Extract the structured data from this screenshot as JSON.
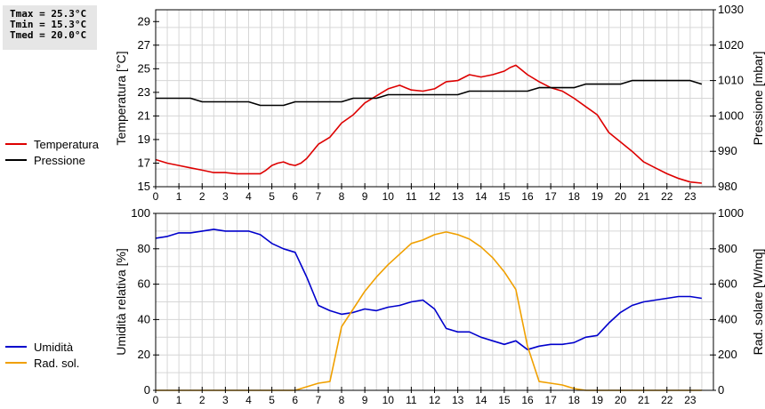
{
  "stats": {
    "tmax": "Tmax = 25.3°C",
    "tmin": "Tmin = 15.3°C",
    "tmed": "Tmed = 20.0°C"
  },
  "chart_data": [
    {
      "type": "line",
      "x_tick_labels": [
        "0",
        "1",
        "2",
        "3",
        "4",
        "5",
        "6",
        "7",
        "8",
        "9",
        "10",
        "11",
        "12",
        "13",
        "14",
        "15",
        "16",
        "17",
        "18",
        "19",
        "20",
        "21",
        "22",
        "23"
      ],
      "xlim": [
        0,
        24
      ],
      "ylabel": "Temperatura [°C]",
      "ylim": [
        15,
        30
      ],
      "y_tick_labels": [
        "15",
        "17",
        "19",
        "21",
        "23",
        "25",
        "27",
        "29"
      ],
      "y2label": "Pressione [mbar]",
      "y2lim": [
        980,
        1030
      ],
      "y2_tick_labels": [
        "980",
        "990",
        "1000",
        "1010",
        "1020",
        "1030"
      ],
      "grid": true,
      "legend_position": "left",
      "series": [
        {
          "name": "Temperatura",
          "axis": "left",
          "color": "#dd0000",
          "x": [
            0,
            0.5,
            1,
            1.5,
            2,
            2.5,
            3,
            3.5,
            4,
            4.5,
            4.75,
            5,
            5.25,
            5.5,
            5.75,
            6,
            6.25,
            6.5,
            7,
            7.5,
            8,
            8.5,
            9,
            9.5,
            10,
            10.5,
            10.75,
            11,
            11.5,
            12,
            12.5,
            13,
            13.5,
            14,
            14.5,
            15,
            15.25,
            15.5,
            16,
            16.5,
            17,
            17.5,
            18,
            18.5,
            19,
            19.5,
            20,
            20.5,
            21,
            21.5,
            22,
            22.5,
            23,
            23.5
          ],
          "y": [
            17.3,
            17.0,
            16.8,
            16.6,
            16.4,
            16.2,
            16.2,
            16.1,
            16.1,
            16.1,
            16.4,
            16.8,
            17.0,
            17.1,
            16.9,
            16.8,
            17.0,
            17.4,
            18.6,
            19.2,
            20.4,
            21.1,
            22.1,
            22.7,
            23.3,
            23.6,
            23.4,
            23.2,
            23.1,
            23.3,
            23.9,
            24.0,
            24.5,
            24.3,
            24.5,
            24.8,
            25.1,
            25.3,
            24.5,
            23.9,
            23.4,
            23.1,
            22.5,
            21.8,
            21.1,
            19.6,
            18.8,
            18.0,
            17.1,
            16.6,
            16.1,
            15.7,
            15.4,
            15.3
          ]
        },
        {
          "name": "Pressione",
          "axis": "right",
          "color": "#000000",
          "x": [
            0,
            1.5,
            2,
            4,
            4.5,
            5.5,
            6,
            8,
            8.5,
            9.5,
            10,
            13,
            13.5,
            16,
            16.5,
            18,
            18.5,
            20,
            20.5,
            23,
            23.5
          ],
          "y": [
            1005,
            1005,
            1004,
            1004,
            1003,
            1003,
            1004,
            1004,
            1005,
            1005,
            1006,
            1006,
            1007,
            1007,
            1008,
            1008,
            1009,
            1009,
            1010,
            1010,
            1009
          ]
        }
      ]
    },
    {
      "type": "line",
      "x_tick_labels": [
        "0",
        "1",
        "2",
        "3",
        "4",
        "5",
        "6",
        "7",
        "8",
        "9",
        "10",
        "11",
        "12",
        "13",
        "14",
        "15",
        "16",
        "17",
        "18",
        "19",
        "20",
        "21",
        "22",
        "23"
      ],
      "xlim": [
        0,
        24
      ],
      "ylabel": "Umidità relativa [%]",
      "ylim": [
        0,
        100
      ],
      "y_tick_labels": [
        "0",
        "20",
        "40",
        "60",
        "80",
        "100"
      ],
      "y2label": "Rad. solare [W/mq]",
      "y2lim": [
        0,
        1000
      ],
      "y2_tick_labels": [
        "0",
        "200",
        "400",
        "600",
        "800",
        "1000"
      ],
      "grid": true,
      "legend_position": "left",
      "series": [
        {
          "name": "Umidità",
          "axis": "left",
          "color": "#0000cc",
          "x": [
            0,
            0.5,
            1,
            1.5,
            2,
            2.5,
            3,
            3.5,
            4,
            4.5,
            5,
            5.5,
            6,
            6.5,
            7,
            7.5,
            8,
            8.5,
            9,
            9.5,
            10,
            10.5,
            11,
            11.5,
            12,
            12.5,
            13,
            13.5,
            14,
            14.5,
            15,
            15.5,
            16,
            16.5,
            17,
            17.5,
            18,
            18.5,
            19,
            19.5,
            20,
            20.5,
            21,
            21.5,
            22,
            22.5,
            23,
            23.5
          ],
          "y": [
            86,
            87,
            89,
            89,
            90,
            91,
            90,
            90,
            90,
            88,
            83,
            80,
            78,
            64,
            48,
            45,
            43,
            44,
            46,
            45,
            47,
            48,
            50,
            51,
            46,
            35,
            33,
            33,
            30,
            28,
            26,
            28,
            23,
            25,
            26,
            26,
            27,
            30,
            31,
            38,
            44,
            48,
            50,
            51,
            52,
            53,
            53,
            52
          ]
        },
        {
          "name": "Rad. sol.",
          "axis": "right",
          "color": "#f0a000",
          "x": [
            0,
            6,
            6.5,
            7,
            7.5,
            8,
            8.5,
            9,
            9.5,
            10,
            10.5,
            11,
            11.5,
            12,
            12.5,
            13,
            13.5,
            14,
            14.5,
            15,
            15.5,
            16,
            16.5,
            17,
            17.5,
            18,
            18.5,
            19,
            23.5
          ],
          "y": [
            0,
            0,
            20,
            40,
            50,
            360,
            460,
            560,
            640,
            710,
            770,
            830,
            850,
            880,
            895,
            880,
            855,
            810,
            750,
            670,
            570,
            250,
            50,
            40,
            30,
            10,
            0,
            0,
            0
          ]
        }
      ]
    }
  ]
}
